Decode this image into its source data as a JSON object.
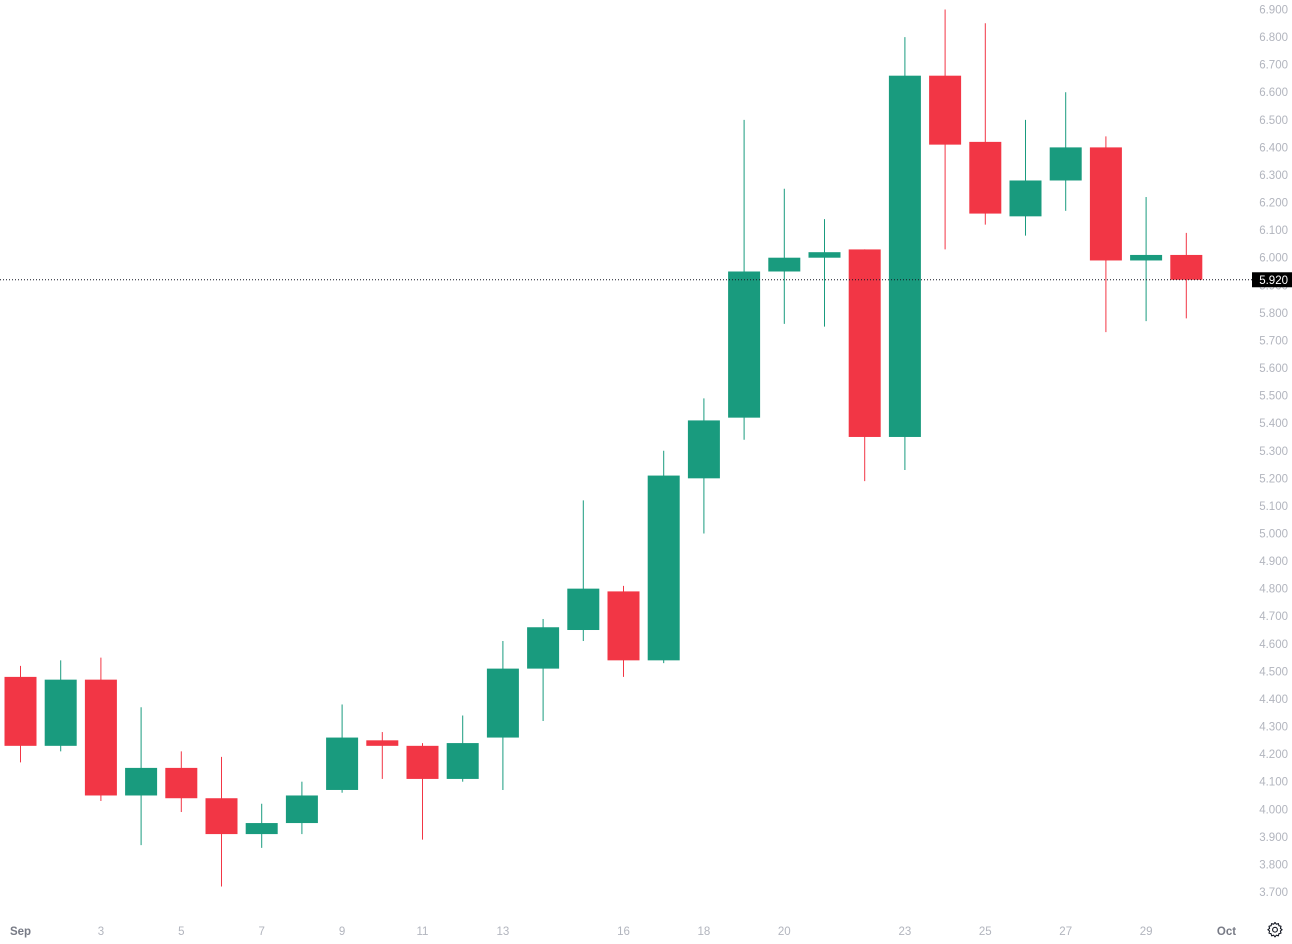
{
  "colors": {
    "up": "#199b7e",
    "down": "#f23645",
    "axis_text": "#b2b5be",
    "price_line": "#131722",
    "price_tag_bg": "#000000"
  },
  "current_price_label": "5.920",
  "settings_icon": "gear-icon",
  "chart_data": {
    "type": "candlestick",
    "y_ticks": [
      "3.700",
      "3.800",
      "3.900",
      "4.000",
      "4.100",
      "4.200",
      "4.300",
      "4.400",
      "4.500",
      "4.600",
      "4.700",
      "4.800",
      "4.900",
      "5.000",
      "5.100",
      "5.200",
      "5.300",
      "5.400",
      "5.500",
      "5.600",
      "5.700",
      "5.800",
      "5.900",
      "6.000",
      "6.100",
      "6.200",
      "6.300",
      "6.400",
      "6.500",
      "6.600",
      "6.700",
      "6.800",
      "6.900"
    ],
    "x_labels": [
      {
        "label": "Sep",
        "index": 0,
        "month": true
      },
      {
        "label": "3",
        "index": 2
      },
      {
        "label": "5",
        "index": 4
      },
      {
        "label": "7",
        "index": 6
      },
      {
        "label": "9",
        "index": 8
      },
      {
        "label": "11",
        "index": 10
      },
      {
        "label": "13",
        "index": 12
      },
      {
        "label": "16",
        "index": 15
      },
      {
        "label": "18",
        "index": 17
      },
      {
        "label": "20",
        "index": 19
      },
      {
        "label": "23",
        "index": 22
      },
      {
        "label": "25",
        "index": 24
      },
      {
        "label": "27",
        "index": 26
      },
      {
        "label": "29",
        "index": 28
      },
      {
        "label": "Oct",
        "index": 30,
        "month": true
      }
    ],
    "current_price": 5.92,
    "ylim": [
      3.65,
      6.93
    ],
    "candles": [
      {
        "date": "Sep 1",
        "o": 4.48,
        "h": 4.52,
        "l": 4.17,
        "c": 4.23
      },
      {
        "date": "Sep 2",
        "o": 4.23,
        "h": 4.54,
        "l": 4.21,
        "c": 4.47
      },
      {
        "date": "Sep 3",
        "o": 4.47,
        "h": 4.55,
        "l": 4.03,
        "c": 4.05
      },
      {
        "date": "Sep 4",
        "o": 4.05,
        "h": 4.37,
        "l": 3.87,
        "c": 4.15
      },
      {
        "date": "Sep 5",
        "o": 4.15,
        "h": 4.21,
        "l": 3.99,
        "c": 4.04
      },
      {
        "date": "Sep 6",
        "o": 4.04,
        "h": 4.19,
        "l": 3.72,
        "c": 3.91
      },
      {
        "date": "Sep 7",
        "o": 3.91,
        "h": 4.02,
        "l": 3.86,
        "c": 3.95
      },
      {
        "date": "Sep 8",
        "o": 3.95,
        "h": 4.1,
        "l": 3.91,
        "c": 4.05
      },
      {
        "date": "Sep 9",
        "o": 4.07,
        "h": 4.38,
        "l": 4.06,
        "c": 4.26
      },
      {
        "date": "Sep 10",
        "o": 4.25,
        "h": 4.28,
        "l": 4.11,
        "c": 4.23
      },
      {
        "date": "Sep 11",
        "o": 4.23,
        "h": 4.24,
        "l": 3.89,
        "c": 4.11
      },
      {
        "date": "Sep 12",
        "o": 4.11,
        "h": 4.34,
        "l": 4.1,
        "c": 4.24
      },
      {
        "date": "Sep 13",
        "o": 4.26,
        "h": 4.61,
        "l": 4.07,
        "c": 4.51
      },
      {
        "date": "Sep 14",
        "o": 4.51,
        "h": 4.69,
        "l": 4.32,
        "c": 4.66
      },
      {
        "date": "Sep 15",
        "o": 4.65,
        "h": 5.12,
        "l": 4.61,
        "c": 4.8
      },
      {
        "date": "Sep 16",
        "o": 4.79,
        "h": 4.81,
        "l": 4.48,
        "c": 4.54
      },
      {
        "date": "Sep 17",
        "o": 4.54,
        "h": 5.3,
        "l": 4.53,
        "c": 5.21
      },
      {
        "date": "Sep 18",
        "o": 5.2,
        "h": 5.49,
        "l": 5.0,
        "c": 5.41
      },
      {
        "date": "Sep 19",
        "o": 5.42,
        "h": 6.5,
        "l": 5.34,
        "c": 5.95
      },
      {
        "date": "Sep 20",
        "o": 5.95,
        "h": 6.25,
        "l": 5.76,
        "c": 6.0
      },
      {
        "date": "Sep 21",
        "o": 6.0,
        "h": 6.14,
        "l": 5.75,
        "c": 6.02
      },
      {
        "date": "Sep 22",
        "o": 6.03,
        "h": 6.03,
        "l": 5.19,
        "c": 5.35
      },
      {
        "date": "Sep 23",
        "o": 5.35,
        "h": 6.8,
        "l": 5.23,
        "c": 6.66
      },
      {
        "date": "Sep 24",
        "o": 6.66,
        "h": 6.9,
        "l": 6.03,
        "c": 6.41
      },
      {
        "date": "Sep 25",
        "o": 6.42,
        "h": 6.85,
        "l": 6.12,
        "c": 6.16
      },
      {
        "date": "Sep 26",
        "o": 6.15,
        "h": 6.5,
        "l": 6.08,
        "c": 6.28
      },
      {
        "date": "Sep 27",
        "o": 6.28,
        "h": 6.6,
        "l": 6.17,
        "c": 6.4
      },
      {
        "date": "Sep 28",
        "o": 6.4,
        "h": 6.44,
        "l": 5.73,
        "c": 5.99
      },
      {
        "date": "Sep 29",
        "o": 5.99,
        "h": 6.22,
        "l": 5.77,
        "c": 6.01
      },
      {
        "date": "Sep 30",
        "o": 6.01,
        "h": 6.09,
        "l": 5.78,
        "c": 5.92
      }
    ]
  }
}
